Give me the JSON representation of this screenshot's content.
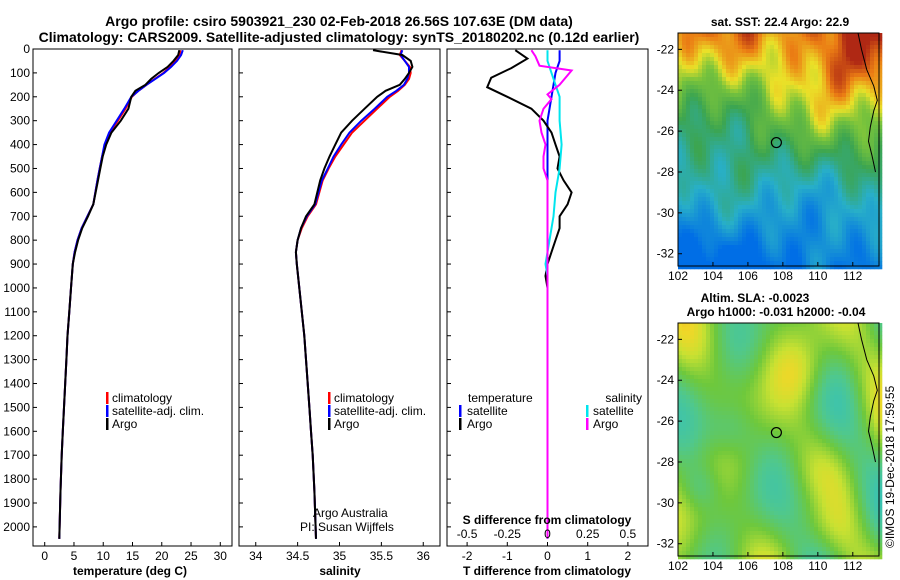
{
  "header": {
    "title_line1": "Argo profile: csiro 5903921_230 02-Feb-2018 26.56S 107.63E (DM data)",
    "title_line2": "Climatology: CARS2009. Satellite-adjusted climatology: synTS_20180202.nc (0.12d earlier)"
  },
  "credits": {
    "argo_australia": "Argo Australia",
    "pi": "PI: Susan Wijffels",
    "imos": "©IMOS 19-Dec-2018 17:59:55"
  },
  "colors": {
    "climatology": "#ff0000",
    "satellite": "#0000ff",
    "argo": "#000000",
    "sat_salinity": "#00e5ee",
    "argo_salinity": "#ff00ff"
  },
  "chart_data": [
    {
      "type": "line",
      "panel": "temperature",
      "xlabel": "temperature (deg C)",
      "ylabel": "",
      "xlim": [
        -2,
        32
      ],
      "ylim": [
        2080,
        0
      ],
      "xticks": [
        0,
        5,
        10,
        15,
        20,
        25,
        30
      ],
      "yticks": [
        0,
        100,
        200,
        300,
        400,
        500,
        600,
        700,
        800,
        900,
        1000,
        1100,
        1200,
        1300,
        1400,
        1500,
        1600,
        1700,
        1800,
        1900,
        2000
      ],
      "legend": [
        "climatology",
        "satellite-adj. clim.",
        "Argo"
      ],
      "series": [
        {
          "name": "climatology",
          "color": "#ff0000",
          "x": [
            23.2,
            23.0,
            22.3,
            21.4,
            20.3,
            18.8,
            17.4,
            16.0,
            14.9,
            13.8,
            12.5,
            11.1,
            10.3,
            9.8,
            9.4,
            9.0,
            8.3,
            7.3,
            6.3,
            5.6,
            5.1,
            4.8,
            4.5,
            4.2,
            3.9,
            3.7,
            3.5,
            3.3,
            3.1,
            2.9,
            2.7,
            2.5
          ],
          "y": [
            5,
            25,
            50,
            75,
            100,
            125,
            150,
            175,
            200,
            250,
            300,
            350,
            400,
            450,
            500,
            550,
            650,
            700,
            750,
            800,
            850,
            900,
            1000,
            1100,
            1200,
            1300,
            1400,
            1500,
            1600,
            1700,
            1850,
            2050
          ]
        },
        {
          "name": "satellite-adj. clim.",
          "color": "#0000ff",
          "x": [
            23.6,
            23.3,
            22.6,
            21.6,
            20.4,
            18.9,
            17.4,
            16.0,
            14.8,
            13.6,
            12.3,
            11.0,
            10.2,
            9.8,
            9.4,
            9.0,
            8.3,
            7.3,
            6.3,
            5.6,
            5.1,
            4.8,
            4.5,
            4.2,
            3.9,
            3.7,
            3.5,
            3.3,
            3.1,
            2.9,
            2.7,
            2.5
          ],
          "y": [
            5,
            25,
            50,
            75,
            100,
            125,
            150,
            175,
            200,
            250,
            300,
            350,
            400,
            450,
            500,
            550,
            650,
            700,
            750,
            800,
            850,
            900,
            1000,
            1100,
            1200,
            1300,
            1400,
            1500,
            1600,
            1700,
            1850,
            2050
          ]
        },
        {
          "name": "Argo",
          "color": "#000000",
          "x": [
            23.0,
            22.8,
            22.0,
            21.0,
            19.5,
            18.2,
            17.2,
            15.5,
            14.8,
            14.3,
            13.0,
            11.4,
            10.5,
            9.9,
            9.5,
            9.1,
            8.3,
            7.4,
            6.4,
            5.7,
            5.2,
            4.8,
            4.5,
            4.2,
            3.9,
            3.7,
            3.5,
            3.3,
            3.1,
            2.9,
            2.7,
            2.5
          ],
          "y": [
            5,
            25,
            50,
            75,
            100,
            125,
            150,
            175,
            200,
            250,
            300,
            350,
            400,
            450,
            500,
            550,
            650,
            700,
            750,
            800,
            850,
            900,
            1000,
            1100,
            1200,
            1300,
            1400,
            1500,
            1600,
            1700,
            1850,
            2050
          ]
        }
      ]
    },
    {
      "type": "line",
      "panel": "salinity",
      "xlabel": "salinity",
      "xlim": [
        33.8,
        36.2
      ],
      "ylim": [
        2080,
        0
      ],
      "xticks": [
        34,
        34.5,
        35,
        35.5,
        36
      ],
      "legend": [
        "climatology",
        "satellite-adj. clim.",
        "Argo"
      ],
      "series": [
        {
          "name": "climatology",
          "color": "#ff0000",
          "x": [
            35.74,
            35.72,
            35.78,
            35.84,
            35.85,
            35.83,
            35.78,
            35.7,
            35.6,
            35.45,
            35.3,
            35.15,
            35.05,
            34.95,
            34.87,
            34.8,
            34.72,
            34.62,
            34.55,
            34.5,
            34.48,
            34.49,
            34.52,
            34.55,
            34.58,
            34.6,
            34.62,
            34.64,
            34.66,
            34.68,
            34.7,
            34.72
          ],
          "y": [
            5,
            25,
            50,
            75,
            100,
            125,
            150,
            175,
            200,
            250,
            300,
            350,
            400,
            450,
            500,
            550,
            650,
            700,
            750,
            800,
            850,
            900,
            1000,
            1100,
            1200,
            1300,
            1400,
            1500,
            1600,
            1700,
            1850,
            2050
          ]
        },
        {
          "name": "satellite-adj. clim.",
          "color": "#0000ff",
          "x": [
            35.75,
            35.73,
            35.78,
            35.83,
            35.83,
            35.81,
            35.77,
            35.68,
            35.57,
            35.42,
            35.26,
            35.12,
            35.02,
            34.93,
            34.86,
            34.79,
            34.71,
            34.61,
            34.54,
            34.5,
            34.48,
            34.49,
            34.52,
            34.55,
            34.58,
            34.6,
            34.62,
            34.64,
            34.66,
            34.68,
            34.7,
            34.72
          ],
          "y": [
            5,
            25,
            50,
            75,
            100,
            125,
            150,
            175,
            200,
            250,
            300,
            350,
            400,
            450,
            500,
            550,
            650,
            700,
            750,
            800,
            850,
            900,
            1000,
            1100,
            1200,
            1300,
            1400,
            1500,
            1600,
            1700,
            1850,
            2050
          ]
        },
        {
          "name": "Argo",
          "color": "#000000",
          "x": [
            35.4,
            35.75,
            35.85,
            35.87,
            35.83,
            35.78,
            35.72,
            35.55,
            35.45,
            35.3,
            35.15,
            35.02,
            34.95,
            34.88,
            34.82,
            34.77,
            34.7,
            34.6,
            34.54,
            34.5,
            34.48,
            34.49,
            34.52,
            34.55,
            34.58,
            34.6,
            34.62,
            34.64,
            34.66,
            34.68,
            34.7,
            34.72
          ],
          "y": [
            5,
            25,
            50,
            75,
            100,
            125,
            150,
            175,
            200,
            250,
            300,
            350,
            400,
            450,
            500,
            550,
            650,
            700,
            750,
            800,
            850,
            900,
            1000,
            1100,
            1200,
            1300,
            1400,
            1500,
            1600,
            1700,
            1850,
            2050
          ]
        }
      ]
    },
    {
      "type": "line",
      "panel": "difference",
      "xlabel": "T difference from climatology",
      "xlabel_top": "S difference from climatology",
      "xlim": [
        -2.5,
        2.5
      ],
      "xticks": [
        -2,
        -1,
        0,
        1,
        2
      ],
      "xticks_s": [
        -0.5,
        -0.25,
        0,
        0.25,
        0.5
      ],
      "xticks_s_labels": [
        "-0.5",
        "-0.25",
        "0",
        "0.25",
        "0.5"
      ],
      "ylim": [
        2080,
        0
      ],
      "legend_temperature_title": "temperature",
      "legend_salinity_title": "salinity",
      "legend": [
        "satellite",
        "Argo",
        "satellite",
        "Argo"
      ],
      "series": [
        {
          "name": "satellite",
          "color": "#0000ff",
          "x": [
            0.3,
            0.3,
            0.2,
            0.1,
            0.0,
            0.0,
            0.0,
            0.0,
            0.0,
            0.0,
            0.0,
            0.0,
            0.0,
            0.0,
            0.0
          ],
          "y": [
            5,
            50,
            100,
            200,
            300,
            400,
            500,
            600,
            700,
            800,
            900,
            1000,
            1400,
            1800,
            2050
          ]
        },
        {
          "name": "Argo",
          "color": "#000000",
          "x": [
            -0.8,
            -0.5,
            -0.9,
            -1.4,
            -1.5,
            -1.0,
            -0.4,
            -0.1,
            0.1,
            0.2,
            0.3,
            0.25,
            0.4,
            0.6,
            0.5,
            0.3,
            0.3,
            0.2,
            0.1,
            0.0,
            -0.05,
            0.0,
            0.0,
            0.0,
            0.0
          ],
          "y": [
            5,
            40,
            80,
            120,
            160,
            200,
            250,
            300,
            350,
            400,
            450,
            500,
            550,
            600,
            650,
            700,
            750,
            800,
            850,
            900,
            950,
            1000,
            1400,
            1800,
            2050
          ]
        },
        {
          "name": "satellite",
          "color": "#00e5ee",
          "x": [
            0.0,
            0.0,
            0.1,
            0.2,
            0.3,
            0.3,
            0.35,
            0.3,
            0.2,
            0.15,
            0.05,
            -0.05,
            0.0,
            0.0,
            0.0,
            0.0
          ],
          "y": [
            5,
            50,
            100,
            150,
            200,
            300,
            400,
            500,
            600,
            700,
            800,
            900,
            950,
            1000,
            1500,
            2050
          ]
        },
        {
          "name": "Argo",
          "color": "#ff00ff",
          "x": [
            -0.4,
            -0.3,
            -0.2,
            0.6,
            0.3,
            0.0,
            0.1,
            -0.1,
            -0.2,
            -0.15,
            -0.05,
            -0.1,
            -0.1,
            0.0,
            0.0,
            0.0
          ],
          "y": [
            5,
            30,
            70,
            90,
            150,
            190,
            210,
            250,
            300,
            350,
            400,
            450,
            500,
            550,
            1500,
            2050
          ]
        }
      ]
    },
    {
      "type": "heatmap",
      "panel": "map-sst",
      "title": "sat. SST: 22.4  Argo: 22.9",
      "xlim": [
        102,
        113.5
      ],
      "ylim": [
        -32.6,
        -21.2
      ],
      "xticks": [
        102,
        104,
        106,
        108,
        110,
        112
      ],
      "yticks": [
        -22,
        -24,
        -26,
        -28,
        -30,
        -32
      ],
      "argo_position": [
        107.63,
        -26.56
      ]
    },
    {
      "type": "heatmap",
      "panel": "map-sla",
      "title_line1": "Altim. SLA: -0.0023",
      "title_line2": "Argo h1000: -0.031 h2000: -0.04",
      "xlim": [
        102,
        113.5
      ],
      "ylim": [
        -32.6,
        -21.2
      ],
      "xticks": [
        102,
        104,
        106,
        108,
        110,
        112
      ],
      "yticks": [
        -22,
        -24,
        -26,
        -28,
        -30,
        -32
      ],
      "argo_position": [
        107.63,
        -26.56
      ]
    }
  ]
}
